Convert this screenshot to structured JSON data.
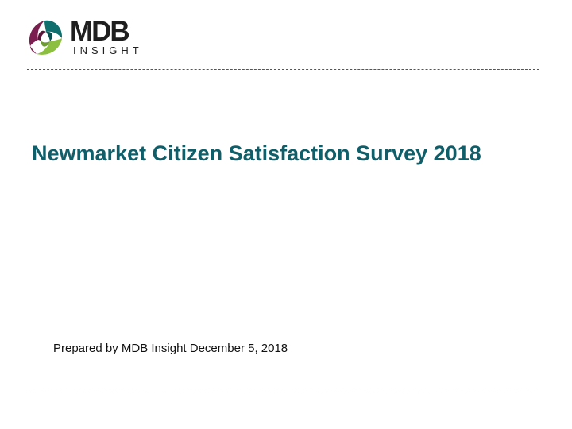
{
  "logo": {
    "wordmark": "MDB",
    "subtext": "INSIGHT",
    "colors": [
      "#7a1f4f",
      "#0f6e6e",
      "#8cbf3f"
    ]
  },
  "slide": {
    "title": "Newmarket Citizen Satisfaction Survey 2018",
    "subtitle": "Prepared by MDB Insight December 5, 2018",
    "title_color": "#0f5f6a"
  }
}
